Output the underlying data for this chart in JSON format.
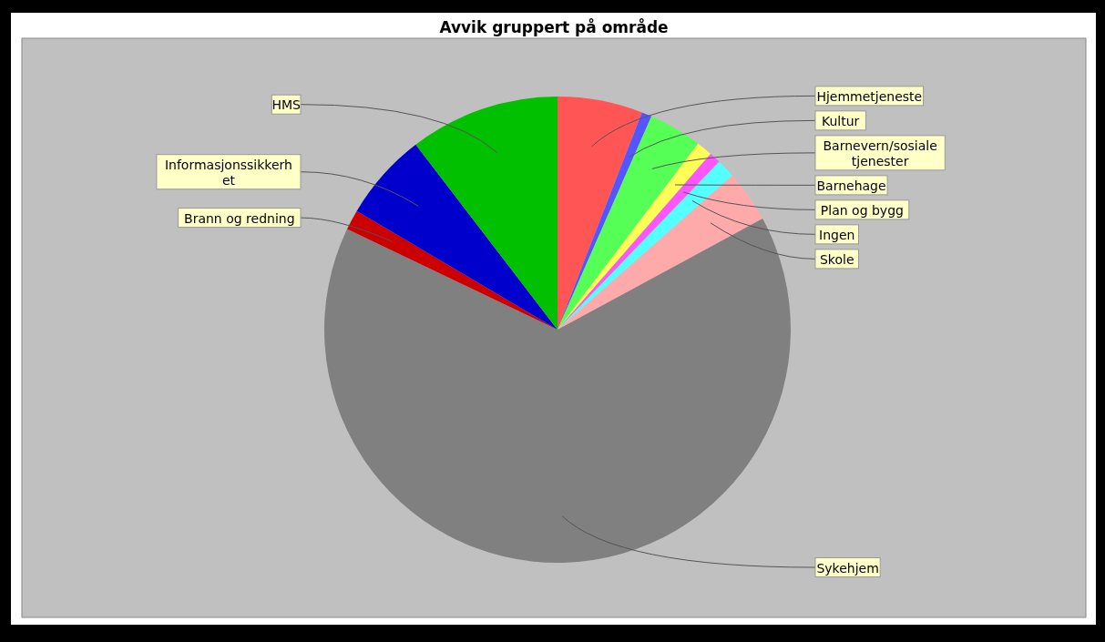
{
  "chart_data": {
    "type": "pie",
    "title": "Avvik gruppert på område",
    "categories": [
      "Hjemmetjeneste",
      "Kultur",
      "Barnevern/sosiale tjenester",
      "Barnehage",
      "Plan og bygg",
      "Ingen",
      "Skole",
      "Sykehjem",
      "Brann og redning",
      "Informasjonssikkerhet",
      "HMS"
    ],
    "values": [
      5.9,
      0.7,
      3.7,
      1.1,
      0.8,
      1.3,
      3.6,
      65.0,
      1.4,
      6.1,
      10.4
    ],
    "colors": [
      "#ff5555",
      "#5555ff",
      "#55ff55",
      "#ffff55",
      "#ff55ff",
      "#55ffff",
      "#ffaaaa",
      "#808080",
      "#cc0000",
      "#0000cc",
      "#00c000"
    ]
  }
}
